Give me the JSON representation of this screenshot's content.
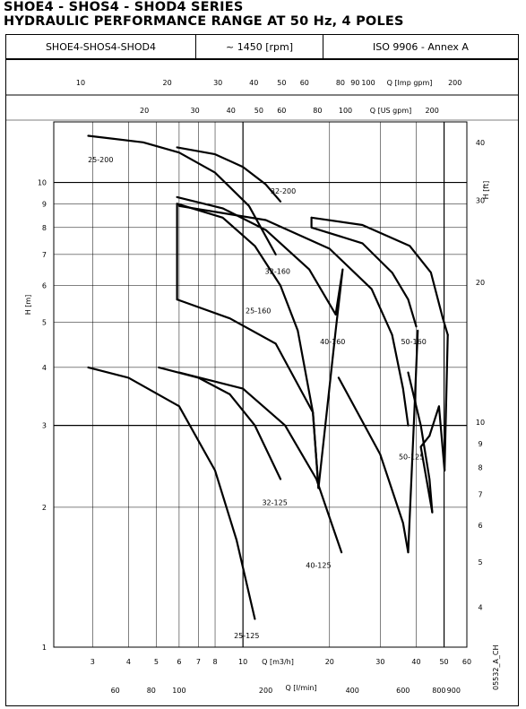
{
  "header": {
    "title_line1": "SHOE4 - SHOS4 - SHOD4 SERIES",
    "title_line2": "HYDRAULIC PERFORMANCE RANGE AT 50 Hz, 4 POLES",
    "model": "SHOE4-SHOS4-SHOD4",
    "speed": "~ 1450 [rpm]",
    "standard": "ISO 9906 - Annex A"
  },
  "drawing_code": "05532_A_CH",
  "chart_data": {
    "type": "line",
    "xscale": "log",
    "yscale": "log",
    "x_unit_label": "Q [m3/h]",
    "y_unit_label": "H [m]",
    "xlim": [
      2.2,
      60
    ],
    "ylim": [
      1,
      13.5
    ],
    "grid": true,
    "x_ticks": [
      3,
      4,
      5,
      6,
      7,
      8,
      10,
      20,
      30,
      40,
      50,
      60
    ],
    "y_ticks": [
      1,
      2,
      3,
      4,
      5,
      6,
      7,
      8,
      9,
      10
    ],
    "secondary_axes": {
      "q_imp_gpm": {
        "label": "Q [Imp gpm]",
        "ticks": [
          10,
          20,
          30,
          40,
          50,
          60,
          80,
          90,
          100,
          200
        ]
      },
      "q_us_gpm": {
        "label": "Q [US gpm]",
        "ticks": [
          20,
          30,
          40,
          50,
          60,
          80,
          100,
          200
        ]
      },
      "q_l_min": {
        "label": "Q [l/min]",
        "ticks": [
          60,
          80,
          100,
          200,
          400,
          600,
          800,
          900
        ]
      },
      "h_ft": {
        "label": "H [ft]",
        "ticks": [
          4,
          5,
          6,
          7,
          8,
          9,
          10,
          20,
          30,
          40
        ]
      }
    },
    "series": [
      {
        "name": "25-200",
        "label_at": [
          3.2,
          11.2
        ],
        "curves": [
          [
            [
              2.9,
              12.6
            ],
            [
              4.5,
              12.2
            ],
            [
              6,
              11.6
            ],
            [
              8,
              10.5
            ],
            [
              10.5,
              8.9
            ],
            [
              13,
              7.0
            ]
          ]
        ]
      },
      {
        "name": "32-200",
        "label_at": [
          13.8,
          9.6
        ],
        "curves": [
          [
            [
              5.9,
              11.9
            ],
            [
              8,
              11.5
            ],
            [
              10,
              10.8
            ],
            [
              12,
              9.9
            ],
            [
              13.5,
              9.1
            ]
          ]
        ]
      },
      {
        "name": "32-160",
        "label_at": [
          13.2,
          6.45
        ],
        "curves": [
          [
            [
              5.9,
              9.3
            ],
            [
              8.5,
              8.8
            ],
            [
              12,
              7.9
            ],
            [
              17,
              6.5
            ],
            [
              21,
              5.2
            ]
          ],
          [
            [
              5.9,
              9.0
            ],
            [
              8.5,
              8.4
            ],
            [
              11,
              7.3
            ],
            [
              13.5,
              6.0
            ],
            [
              15.5,
              4.8
            ],
            [
              17.5,
              3.2
            ],
            [
              18.3,
              2.2
            ]
          ],
          [
            [
              18.3,
              2.2
            ],
            [
              21,
              4.8
            ],
            [
              22.2,
              6.5
            ],
            [
              21,
              5.2
            ]
          ]
        ]
      },
      {
        "name": "25-160",
        "label_at": [
          11.3,
          5.3
        ],
        "curves": [
          [
            [
              5.9,
              9.0
            ],
            [
              5.9,
              5.6
            ]
          ],
          [
            [
              5.9,
              5.6
            ],
            [
              9,
              5.1
            ],
            [
              13,
              4.5
            ],
            [
              17.5,
              3.2
            ],
            [
              18.3,
              2.2
            ]
          ]
        ]
      },
      {
        "name": "40-160",
        "label_at": [
          20.5,
          4.55
        ],
        "curves": [
          [
            [
              6,
              8.9
            ],
            [
              12,
              8.3
            ],
            [
              20,
              7.2
            ],
            [
              28,
              5.9
            ],
            [
              33,
              4.7
            ],
            [
              36,
              3.6
            ],
            [
              37.5,
              3.0
            ]
          ],
          [
            [
              17.3,
              8.4
            ],
            [
              17.3,
              8.0
            ],
            [
              26,
              7.4
            ],
            [
              33,
              6.4
            ],
            [
              37.5,
              5.6
            ],
            [
              40,
              4.9
            ]
          ],
          [
            [
              21.5,
              3.8
            ],
            [
              30,
              2.6
            ],
            [
              36,
              1.85
            ],
            [
              37.5,
              1.6
            ]
          ],
          [
            [
              37.5,
              1.6
            ],
            [
              39.5,
              3.3
            ],
            [
              40.5,
              4.8
            ]
          ]
        ]
      },
      {
        "name": "50-160",
        "label_at": [
          39.2,
          4.55
        ],
        "curves": [
          [
            [
              17.3,
              8.4
            ],
            [
              26,
              8.1
            ],
            [
              38,
              7.3
            ],
            [
              45,
              6.4
            ],
            [
              49.5,
              5.1
            ],
            [
              51.5,
              4.7
            ]
          ],
          [
            [
              51.5,
              4.7
            ],
            [
              50.2,
              2.4
            ]
          ]
        ]
      },
      {
        "name": "50-125",
        "label_at": [
          38.5,
          2.57
        ],
        "curves": [
          [
            [
              37.5,
              3.9
            ],
            [
              41.5,
              3.0
            ],
            [
              44.5,
              2.3
            ],
            [
              45.5,
              1.95
            ]
          ],
          [
            [
              45.5,
              1.95
            ],
            [
              41.5,
              2.7
            ],
            [
              44.5,
              2.85
            ]
          ],
          [
            [
              44.5,
              2.85
            ],
            [
              48,
              3.3
            ],
            [
              50.2,
              2.4
            ]
          ]
        ]
      },
      {
        "name": "32-125",
        "label_at": [
          12.9,
          2.05
        ],
        "curves": [
          [
            [
              5.1,
              4.0
            ],
            [
              7,
              3.8
            ],
            [
              9,
              3.5
            ],
            [
              11,
              3.0
            ],
            [
              13.5,
              2.3
            ]
          ]
        ]
      },
      {
        "name": "40-125",
        "label_at": [
          18.3,
          1.5
        ],
        "curves": [
          [
            [
              6,
              3.9
            ],
            [
              10,
              3.6
            ],
            [
              14,
              3.0
            ],
            [
              18,
              2.3
            ],
            [
              20,
              1.9
            ],
            [
              22,
              1.6
            ]
          ]
        ]
      },
      {
        "name": "25-125",
        "label_at": [
          10.3,
          1.06
        ],
        "curves": [
          [
            [
              2.9,
              4.0
            ],
            [
              4,
              3.8
            ],
            [
              6,
              3.3
            ],
            [
              8,
              2.4
            ],
            [
              9.5,
              1.7
            ],
            [
              11,
              1.15
            ]
          ]
        ]
      }
    ]
  }
}
